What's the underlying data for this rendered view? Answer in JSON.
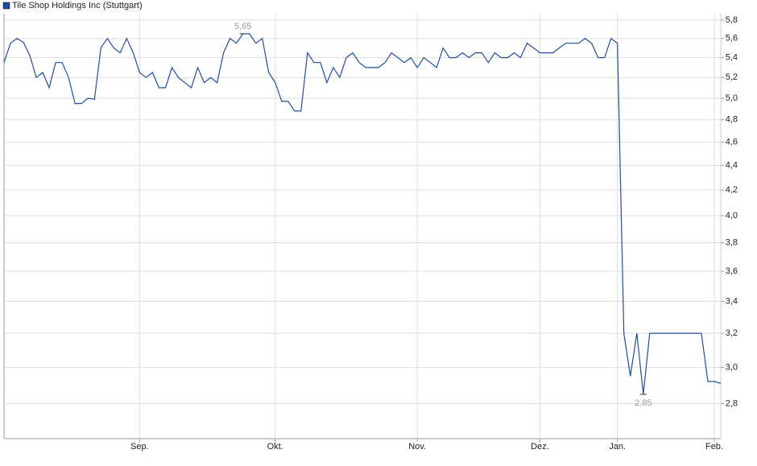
{
  "chart_data": {
    "type": "line",
    "categories": [
      null,
      null,
      null,
      null,
      null,
      null,
      null,
      null,
      null,
      null,
      null,
      null,
      null,
      null,
      null,
      null,
      null,
      null,
      null,
      null,
      null,
      "Sep.",
      null,
      null,
      null,
      null,
      null,
      null,
      null,
      null,
      null,
      null,
      null,
      null,
      null,
      null,
      null,
      null,
      null,
      null,
      null,
      null,
      "Okt.",
      null,
      null,
      null,
      null,
      null,
      null,
      null,
      null,
      null,
      null,
      null,
      null,
      null,
      null,
      null,
      null,
      null,
      null,
      null,
      null,
      null,
      "Nov.",
      null,
      null,
      null,
      null,
      null,
      null,
      null,
      null,
      null,
      null,
      null,
      null,
      null,
      null,
      null,
      null,
      null,
      null,
      "Dez.",
      null,
      null,
      null,
      null,
      null,
      null,
      null,
      null,
      null,
      null,
      null,
      "Jan.",
      null,
      null,
      null,
      null,
      null,
      null,
      null,
      null,
      null,
      null,
      null,
      null,
      null,
      null,
      "Feb.",
      null
    ],
    "series": [
      {
        "name": "Tile Shop Holdings Inc (Stuttgart)",
        "color": "#1f4e9c",
        "values": [
          5.35,
          5.55,
          5.6,
          5.56,
          5.42,
          5.2,
          5.25,
          5.1,
          5.35,
          5.35,
          5.2,
          4.95,
          4.95,
          5.0,
          4.99,
          5.5,
          5.6,
          5.5,
          5.45,
          5.6,
          5.45,
          5.25,
          5.2,
          5.25,
          5.1,
          5.1,
          5.3,
          5.2,
          5.15,
          5.1,
          5.3,
          5.15,
          5.2,
          5.15,
          5.45,
          5.6,
          5.55,
          5.65,
          5.65,
          5.55,
          5.6,
          5.25,
          5.15,
          4.97,
          4.97,
          4.88,
          4.88,
          5.45,
          5.35,
          5.35,
          5.15,
          5.3,
          5.2,
          5.4,
          5.45,
          5.35,
          5.3,
          5.3,
          5.3,
          5.35,
          5.45,
          5.4,
          5.35,
          5.4,
          5.3,
          5.4,
          5.35,
          5.3,
          5.5,
          5.4,
          5.4,
          5.45,
          5.4,
          5.45,
          5.45,
          5.35,
          5.45,
          5.4,
          5.4,
          5.45,
          5.4,
          5.55,
          5.5,
          5.45,
          5.45,
          5.45,
          5.5,
          5.55,
          5.55,
          5.55,
          5.6,
          5.55,
          5.4,
          5.4,
          5.6,
          5.55,
          3.2,
          2.95,
          3.2,
          2.85,
          3.2,
          3.2,
          3.2,
          3.2,
          3.2,
          3.2,
          3.2,
          3.2,
          3.2,
          2.92,
          2.92,
          2.91
        ],
        "value_labels": [
          null,
          null,
          null,
          null,
          null,
          null,
          null,
          null,
          null,
          null,
          null,
          null,
          null,
          null,
          null,
          null,
          null,
          null,
          null,
          null,
          null,
          null,
          null,
          null,
          null,
          null,
          null,
          null,
          null,
          null,
          null,
          null,
          null,
          null,
          null,
          null,
          null,
          "5,65",
          null,
          null,
          null,
          null,
          null,
          null,
          null,
          null,
          null,
          null,
          null,
          null,
          null,
          null,
          null,
          null,
          null,
          null,
          null,
          null,
          null,
          null,
          null,
          null,
          null,
          null,
          null,
          null,
          null,
          null,
          null,
          null,
          null,
          null,
          null,
          null,
          null,
          null,
          null,
          null,
          null,
          null,
          null,
          null,
          null,
          null,
          null,
          null,
          null,
          null,
          null,
          null,
          null,
          null,
          null,
          null,
          null,
          null,
          null,
          null,
          null,
          "2,85",
          null,
          null,
          null,
          null,
          null,
          null,
          null,
          null,
          null,
          null,
          null,
          null
        ]
      }
    ],
    "ylim": [
      2.62,
      5.87
    ],
    "yscale": "log",
    "yticks": [
      {
        "value": 2.8,
        "label": "2,8"
      },
      {
        "value": 3.0,
        "label": "3,0"
      },
      {
        "value": 3.2,
        "label": "3,2"
      },
      {
        "value": 3.4,
        "label": "3,4"
      },
      {
        "value": 3.6,
        "label": "3,6"
      },
      {
        "value": 3.8,
        "label": "3,8"
      },
      {
        "value": 4.0,
        "label": "4,0"
      },
      {
        "value": 4.2,
        "label": "4,2"
      },
      {
        "value": 4.4,
        "label": "4,4"
      },
      {
        "value": 4.6,
        "label": "4,6"
      },
      {
        "value": 4.8,
        "label": "4,8"
      },
      {
        "value": 5.0,
        "label": "5,0"
      },
      {
        "value": 5.2,
        "label": "5,2"
      },
      {
        "value": 5.4,
        "label": "5,4"
      },
      {
        "value": 5.6,
        "label": "5,6"
      },
      {
        "value": 5.8,
        "label": "5,8"
      }
    ],
    "grid": true,
    "legend": "top-left"
  }
}
